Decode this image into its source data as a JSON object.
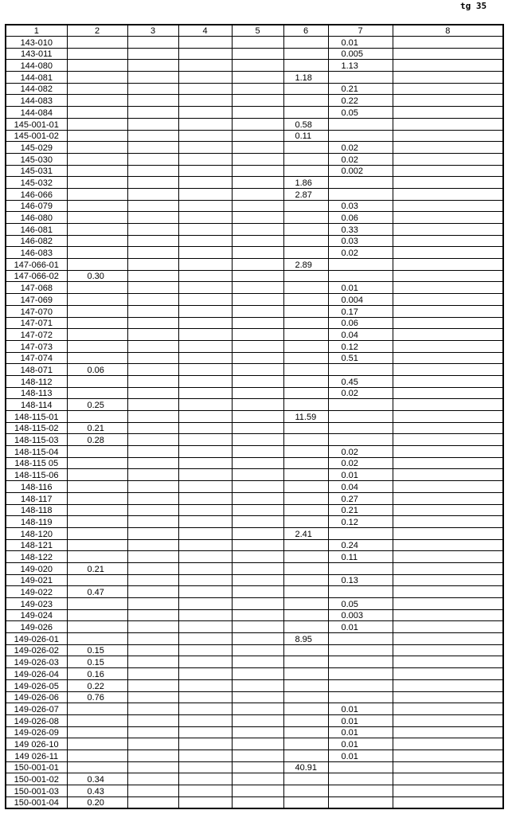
{
  "page_label": "tg 35",
  "headers": [
    "1",
    "2",
    "3",
    "4",
    "5",
    "6",
    "7",
    "8"
  ],
  "rows": [
    [
      "143-010",
      "",
      "",
      "",
      "",
      "",
      "0.01",
      ""
    ],
    [
      "143-011",
      "",
      "",
      "",
      "",
      "",
      "0.005",
      ""
    ],
    [
      "144-080",
      "",
      "",
      "",
      "",
      "",
      "1.13",
      ""
    ],
    [
      "144-081",
      "",
      "",
      "",
      "",
      "1.18",
      "",
      ""
    ],
    [
      "144-082",
      "",
      "",
      "",
      "",
      "",
      "0.21",
      ""
    ],
    [
      "144-083",
      "",
      "",
      "",
      "",
      "",
      "0.22",
      ""
    ],
    [
      "144-084",
      "",
      "",
      "",
      "",
      "",
      "0.05",
      ""
    ],
    [
      "145-001-01",
      "",
      "",
      "",
      "",
      "0.58",
      "",
      ""
    ],
    [
      "145-001-02",
      "",
      "",
      "",
      "",
      "0.11",
      "",
      ""
    ],
    [
      "145-029",
      "",
      "",
      "",
      "",
      "",
      "0.02",
      ""
    ],
    [
      "145-030",
      "",
      "",
      "",
      "",
      "",
      "0.02",
      ""
    ],
    [
      "145-031",
      "",
      "",
      "",
      "",
      "",
      "0.002",
      ""
    ],
    [
      "145-032",
      "",
      "",
      "",
      "",
      "1.86",
      "",
      ""
    ],
    [
      "146-066",
      "",
      "",
      "",
      "",
      "2.87",
      "",
      ""
    ],
    [
      "146-079",
      "",
      "",
      "",
      "",
      "",
      "0.03",
      ""
    ],
    [
      "146-080",
      "",
      "",
      "",
      "",
      "",
      "0.06",
      ""
    ],
    [
      "146-081",
      "",
      "",
      "",
      "",
      "",
      "0.33",
      ""
    ],
    [
      "146-082",
      "",
      "",
      "",
      "",
      "",
      "0.03",
      ""
    ],
    [
      "146-083",
      "",
      "",
      "",
      "",
      "",
      "0.02",
      ""
    ],
    [
      "147-066-01",
      "",
      "",
      "",
      "",
      "2.89",
      "",
      ""
    ],
    [
      "147-066-02",
      "0.30",
      "",
      "",
      "",
      "",
      "",
      ""
    ],
    [
      "147-068",
      "",
      "",
      "",
      "",
      "",
      "0.01",
      ""
    ],
    [
      "147-069",
      "",
      "",
      "",
      "",
      "",
      "0.004",
      ""
    ],
    [
      "147-070",
      "",
      "",
      "",
      "",
      "",
      "0.17",
      ""
    ],
    [
      "147-071",
      "",
      "",
      "",
      "",
      "",
      "0.06",
      ""
    ],
    [
      "147-072",
      "",
      "",
      "",
      "",
      "",
      "0.04",
      ""
    ],
    [
      "147-073",
      "",
      "",
      "",
      "",
      "",
      "0.12",
      ""
    ],
    [
      "147-074",
      "",
      "",
      "",
      "",
      "",
      "0.51",
      ""
    ],
    [
      "148-071",
      "0.06",
      "",
      "",
      "",
      "",
      "",
      ""
    ],
    [
      "148-112",
      "",
      "",
      "",
      "",
      "",
      "0.45",
      ""
    ],
    [
      "148-113",
      "",
      "",
      "",
      "",
      "",
      "0.02",
      ""
    ],
    [
      "148-114",
      "0.25",
      "",
      "",
      "",
      "",
      "",
      ""
    ],
    [
      "148-115-01",
      "",
      "",
      "",
      "",
      "11.59",
      "",
      ""
    ],
    [
      "148-115-02",
      "0.21",
      "",
      "",
      "",
      "",
      "",
      ""
    ],
    [
      "148-115-03",
      "0.28",
      "",
      "",
      "",
      "",
      "",
      ""
    ],
    [
      "148-115-04",
      "",
      "",
      "",
      "",
      "",
      "0.02",
      ""
    ],
    [
      "148-115 05",
      "",
      "",
      "",
      "",
      "",
      "0.02",
      ""
    ],
    [
      "148-115-06",
      "",
      "",
      "",
      "",
      "",
      "0.01",
      ""
    ],
    [
      "148-116",
      "",
      "",
      "",
      "",
      "",
      "0.04",
      ""
    ],
    [
      "148-117",
      "",
      "",
      "",
      "",
      "",
      "0.27",
      ""
    ],
    [
      "148-118",
      "",
      "",
      "",
      "",
      "",
      "0.21",
      ""
    ],
    [
      "148-119",
      "",
      "",
      "",
      "",
      "",
      "0.12",
      ""
    ],
    [
      "148-120",
      "",
      "",
      "",
      "",
      "2.41",
      "",
      ""
    ],
    [
      "148-121",
      "",
      "",
      "",
      "",
      "",
      "0.24",
      ""
    ],
    [
      "148-122",
      "",
      "",
      "",
      "",
      "",
      "0.11",
      ""
    ],
    [
      "149-020",
      "0.21",
      "",
      "",
      "",
      "",
      "",
      ""
    ],
    [
      "149-021",
      "",
      "",
      "",
      "",
      "",
      "0.13",
      ""
    ],
    [
      "149-022",
      "0.47",
      "",
      "",
      "",
      "",
      "",
      ""
    ],
    [
      "149-023",
      "",
      "",
      "",
      "",
      "",
      "0.05",
      ""
    ],
    [
      "149-024",
      "",
      "",
      "",
      "",
      "",
      "0.003",
      ""
    ],
    [
      "149-026",
      "",
      "",
      "",
      "",
      "",
      "0.01",
      ""
    ],
    [
      "149-026-01",
      "",
      "",
      "",
      "",
      "8.95",
      "",
      ""
    ],
    [
      "149-026-02",
      "0.15",
      "",
      "",
      "",
      "",
      "",
      ""
    ],
    [
      "149-026-03",
      "0.15",
      "",
      "",
      "",
      "",
      "",
      ""
    ],
    [
      "149-026-04",
      "0.16",
      "",
      "",
      "",
      "",
      "",
      ""
    ],
    [
      "149-026-05",
      "0.22",
      "",
      "",
      "",
      "",
      "",
      ""
    ],
    [
      "149-026-06",
      "0.76",
      "",
      "",
      "",
      "",
      "",
      ""
    ],
    [
      "149-026-07",
      "",
      "",
      "",
      "",
      "",
      "0.01",
      ""
    ],
    [
      "149-026-08",
      "",
      "",
      "",
      "",
      "",
      "0.01",
      ""
    ],
    [
      "149-026-09",
      "",
      "",
      "",
      "",
      "",
      "0.01",
      ""
    ],
    [
      "149 026-10",
      "",
      "",
      "",
      "",
      "",
      "0.01",
      ""
    ],
    [
      "149 026-11",
      "",
      "",
      "",
      "",
      "",
      "0.01",
      ""
    ],
    [
      "150-001-01",
      "",
      "",
      "",
      "",
      "40.91",
      "",
      ""
    ],
    [
      "150-001-02",
      "0.34",
      "",
      "",
      "",
      "",
      "",
      ""
    ],
    [
      "150-001-03",
      "0.43",
      "",
      "",
      "",
      "",
      "",
      ""
    ],
    [
      "150-001-04",
      "0.20",
      "",
      "",
      "",
      "",
      "",
      ""
    ]
  ]
}
